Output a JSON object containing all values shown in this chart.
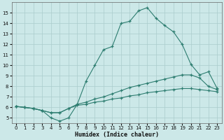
{
  "xlabel": "Humidex (Indice chaleur)",
  "x_values": [
    0,
    1,
    2,
    3,
    4,
    5,
    6,
    7,
    8,
    9,
    10,
    11,
    12,
    13,
    14,
    15,
    16,
    17,
    18,
    19,
    20,
    21,
    22,
    23
  ],
  "line_max": [
    6.1,
    6.0,
    5.9,
    5.7,
    5.0,
    4.7,
    5.0,
    6.3,
    8.5,
    10.0,
    11.5,
    11.8,
    14.0,
    14.2,
    15.2,
    15.5,
    14.5,
    13.8,
    13.2,
    12.0,
    10.1,
    9.1,
    9.4,
    7.8
  ],
  "line_mean": [
    6.1,
    6.0,
    5.9,
    5.7,
    5.5,
    5.5,
    5.9,
    6.3,
    6.5,
    6.8,
    7.0,
    7.3,
    7.6,
    7.9,
    8.1,
    8.3,
    8.5,
    8.7,
    8.9,
    9.1,
    9.1,
    8.8,
    8.0,
    7.7
  ],
  "line_min": [
    6.1,
    6.0,
    5.9,
    5.7,
    5.5,
    5.5,
    5.9,
    6.2,
    6.3,
    6.5,
    6.6,
    6.8,
    6.9,
    7.1,
    7.2,
    7.4,
    7.5,
    7.6,
    7.7,
    7.8,
    7.8,
    7.7,
    7.6,
    7.5
  ],
  "line_color": "#2d7d70",
  "bg_color": "#cce8e8",
  "grid_color": "#aacccc",
  "ylim": [
    4.5,
    16.0
  ],
  "xlim": [
    -0.5,
    23.5
  ],
  "yticks": [
    5,
    6,
    7,
    8,
    9,
    10,
    11,
    12,
    13,
    14,
    15
  ],
  "xticks": [
    0,
    1,
    2,
    3,
    4,
    5,
    6,
    7,
    8,
    9,
    10,
    11,
    12,
    13,
    14,
    15,
    16,
    17,
    18,
    19,
    20,
    21,
    22,
    23
  ]
}
